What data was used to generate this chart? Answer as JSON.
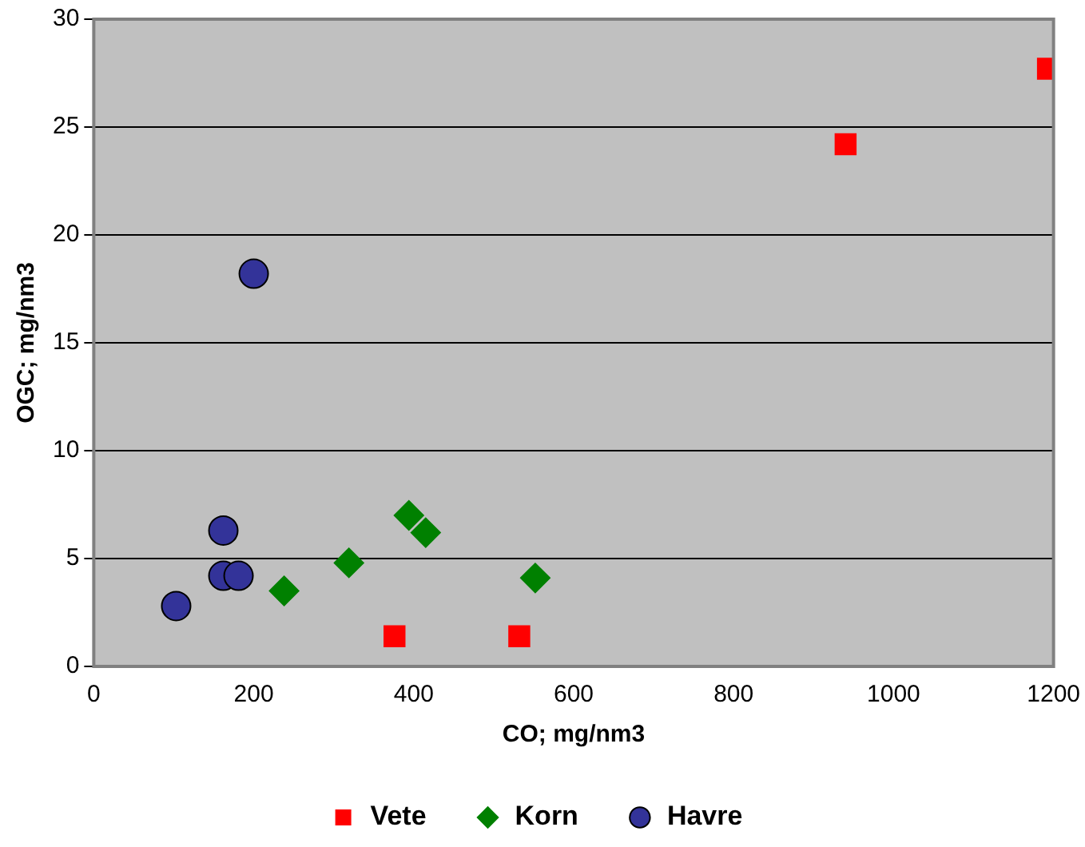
{
  "chart_data": {
    "type": "scatter",
    "xlabel": "CO; mg/nm3",
    "ylabel": "OGC; mg/nm3",
    "xlim": [
      0,
      1200
    ],
    "xticks": [
      0,
      200,
      400,
      600,
      800,
      1000,
      1200
    ],
    "ylim": [
      0,
      30
    ],
    "yticks": [
      0,
      5,
      10,
      15,
      20,
      25,
      30
    ],
    "grid": "y",
    "legend": "bottom",
    "series": [
      {
        "name": "Vete",
        "color": "#ff0000",
        "marker": "square",
        "x": [
          376,
          532,
          940,
          1193
        ],
        "values": [
          1.4,
          1.4,
          24.2,
          27.7
        ]
      },
      {
        "name": "Korn",
        "color": "#008000",
        "marker": "diamond",
        "x": [
          238,
          319,
          394,
          415,
          552
        ],
        "values": [
          3.5,
          4.8,
          7.0,
          6.2,
          4.1
        ]
      },
      {
        "name": "Havre",
        "color": "#333399",
        "marker": "circle",
        "x": [
          103,
          162,
          162,
          181,
          200
        ],
        "values": [
          2.8,
          6.3,
          4.2,
          4.2,
          18.2
        ]
      }
    ]
  }
}
